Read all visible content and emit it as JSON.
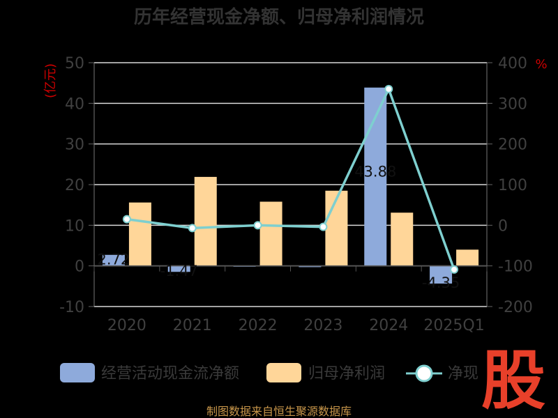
{
  "colors": {
    "bar_ocf": "#8eaadb",
    "bar_profit": "#ffd699",
    "line": "#7ecfcf",
    "grid": "#d9d9d9",
    "logo": "#e8402a",
    "source": "#c8964a"
  },
  "logo": {
    "text": "股"
  },
  "source": "制图数据来自恒生聚源数据库",
  "chart_data": {
    "type": "bar",
    "title": "历年经营现金净额、归母净利润情况",
    "left_unit": "(亿元)",
    "right_unit": "%",
    "categories": [
      "2020",
      "2021",
      "2022",
      "2023",
      "2024",
      "2025Q1"
    ],
    "ylim": [
      -10,
      50
    ],
    "yticks": [
      -10,
      0,
      10,
      20,
      30,
      40,
      50
    ],
    "y2lim": [
      -200,
      400
    ],
    "y2ticks": [
      -200,
      -100,
      0,
      100,
      200,
      300,
      400
    ],
    "grid": true,
    "legend_position": "bottom",
    "series": [
      {
        "name": "经营活动现金流净额",
        "type": "bar",
        "axis": "left",
        "values": [
          2.72,
          -1.47,
          -0.2,
          -0.3,
          43.88,
          -4.35
        ],
        "labels": [
          "2.72",
          "-1.47",
          "",
          "",
          "43.88",
          "-4.35"
        ]
      },
      {
        "name": "归母净利润",
        "type": "bar",
        "axis": "left",
        "values": [
          15.6,
          21.9,
          15.8,
          18.5,
          13.1,
          4.0
        ]
      },
      {
        "name": "净现比",
        "legend_label": "净现",
        "type": "line",
        "axis": "right",
        "values": [
          15,
          -7,
          0,
          -4,
          335,
          -109
        ]
      }
    ]
  }
}
